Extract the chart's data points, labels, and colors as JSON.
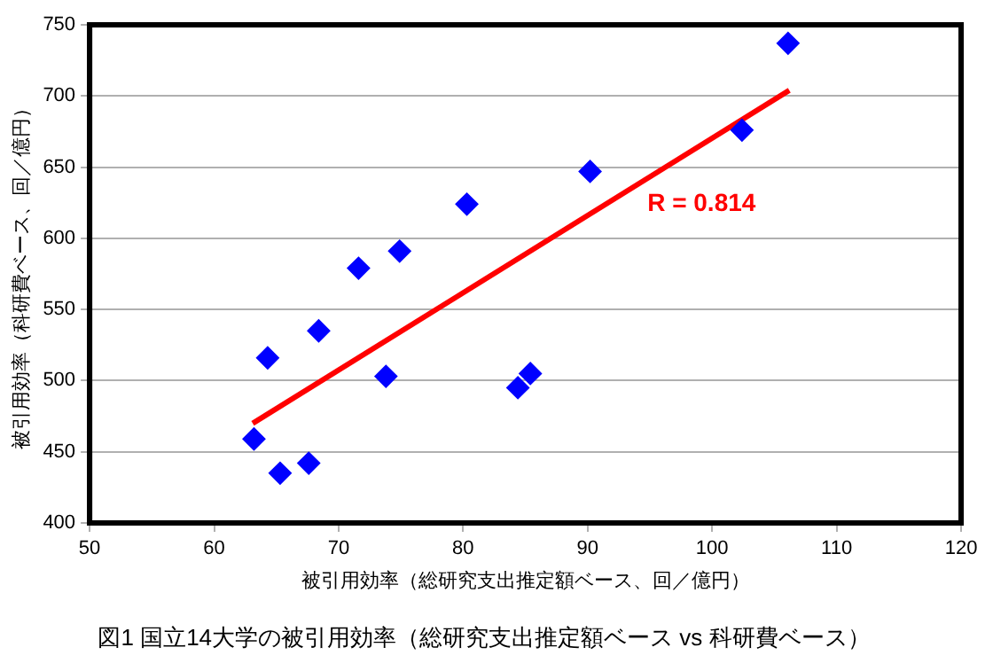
{
  "chart_data": {
    "type": "scatter",
    "title": "図1 国立14大学の被引用効率（総研究支出推定額ベース vs 科研費ベース）",
    "xlabel": "被引用効率（総研究支出推定額ベース、回／億円）",
    "ylabel": "被引用効率（科研費ベース、回／億円）",
    "annotations": [
      "R = 0.814"
    ],
    "xlim": [
      50,
      120
    ],
    "xticks": [
      50,
      60,
      70,
      80,
      90,
      100,
      110,
      120
    ],
    "ylim": [
      400,
      750
    ],
    "yticks": [
      400,
      450,
      500,
      550,
      600,
      650,
      700,
      750
    ],
    "grid": "y",
    "legend": false,
    "series": [
      {
        "color": "#0000ff",
        "marker": "diamond",
        "x": [
          63.2,
          65.3,
          67.6,
          64.3,
          68.4,
          71.6,
          74.9,
          73.8,
          80.3,
          84.4,
          85.4,
          90.2,
          102.4,
          106.1
        ],
        "values": [
          459,
          435,
          442,
          516,
          535,
          579,
          591,
          503,
          624,
          495,
          505,
          647,
          676,
          737
        ]
      },
      {
        "type": "line",
        "marker": "none",
        "color": "#ff0000",
        "x": [
          63.1,
          106.2
        ],
        "values": [
          470,
          704
        ]
      }
    ]
  }
}
